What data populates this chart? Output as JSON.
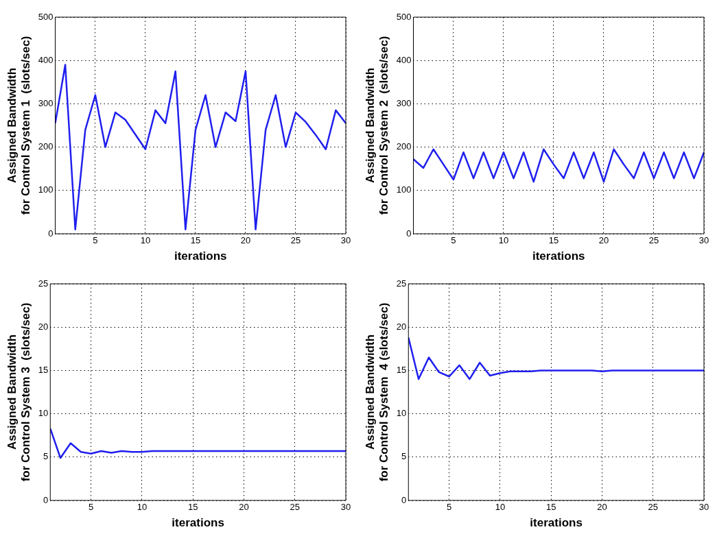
{
  "chart_data": [
    {
      "type": "line",
      "ylabel": "Assigned Bandwidth\nfor Control System 1  (slots/sec)",
      "xlabel": "iterations",
      "x": [
        1,
        2,
        3,
        4,
        5,
        6,
        7,
        8,
        9,
        10,
        11,
        12,
        13,
        14,
        15,
        16,
        17,
        18,
        19,
        20,
        21,
        22,
        23,
        24,
        25,
        26,
        27,
        28,
        29,
        30
      ],
      "series": [
        {
          "color": "#1f1fef",
          "values": [
            255,
            390,
            10,
            240,
            320,
            200,
            280,
            263,
            229,
            195,
            285,
            255,
            375,
            10,
            240,
            320,
            200,
            280,
            260,
            375,
            10,
            240,
            320,
            200,
            280,
            258,
            228,
            195,
            285,
            255
          ]
        }
      ],
      "xlim": [
        1,
        30
      ],
      "xticks": [
        5,
        10,
        15,
        20,
        25,
        30
      ],
      "ylim": [
        0,
        500
      ],
      "yticks": [
        0,
        100,
        200,
        300,
        400,
        500
      ],
      "grid": true
    },
    {
      "type": "line",
      "ylabel": "Assigned Bandwidth\nfor Control System 2  (slots/sec)",
      "xlabel": "iterations",
      "x": [
        1,
        2,
        3,
        4,
        5,
        6,
        7,
        8,
        9,
        10,
        11,
        12,
        13,
        14,
        15,
        16,
        17,
        18,
        19,
        20,
        21,
        22,
        23,
        24,
        25,
        26,
        27,
        28,
        29,
        30
      ],
      "series": [
        {
          "color": "#1f1fef",
          "values": [
            172,
            152,
            195,
            160,
            125,
            188,
            128,
            188,
            128,
            188,
            128,
            188,
            120,
            195,
            160,
            128,
            188,
            128,
            188,
            120,
            195,
            160,
            128,
            188,
            128,
            188,
            128,
            188,
            128,
            188
          ]
        }
      ],
      "xlim": [
        1,
        30
      ],
      "xticks": [
        5,
        10,
        15,
        20,
        25,
        30
      ],
      "ylim": [
        0,
        500
      ],
      "yticks": [
        0,
        100,
        200,
        300,
        400,
        500
      ],
      "grid": true
    },
    {
      "type": "line",
      "ylabel": "Assigned Bandwidth\nfor Control System 3  (slots/sec)",
      "xlabel": "iterations",
      "x": [
        1,
        2,
        3,
        4,
        5,
        6,
        7,
        8,
        9,
        10,
        11,
        12,
        13,
        14,
        15,
        16,
        17,
        18,
        19,
        20,
        21,
        22,
        23,
        24,
        25,
        26,
        27,
        28,
        29,
        30
      ],
      "series": [
        {
          "color": "#1f1fef",
          "values": [
            8.3,
            4.9,
            6.6,
            5.6,
            5.4,
            5.7,
            5.5,
            5.7,
            5.6,
            5.6,
            5.7,
            5.7,
            5.7,
            5.7,
            5.7,
            5.7,
            5.7,
            5.7,
            5.7,
            5.7,
            5.7,
            5.7,
            5.7,
            5.7,
            5.7,
            5.7,
            5.7,
            5.7,
            5.7,
            5.7
          ]
        }
      ],
      "xlim": [
        1,
        30
      ],
      "xticks": [
        5,
        10,
        15,
        20,
        25,
        30
      ],
      "ylim": [
        0,
        25
      ],
      "yticks": [
        0,
        5,
        10,
        15,
        20,
        25
      ],
      "grid": true
    },
    {
      "type": "line",
      "ylabel": "Assigned Bandwidth\nfor Control System  4 (slots/sec)",
      "xlabel": "iterations",
      "x": [
        1,
        2,
        3,
        4,
        5,
        6,
        7,
        8,
        9,
        10,
        11,
        12,
        13,
        14,
        15,
        16,
        17,
        18,
        19,
        20,
        21,
        22,
        23,
        24,
        25,
        26,
        27,
        28,
        29,
        30
      ],
      "series": [
        {
          "color": "#1f1fef",
          "values": [
            18.8,
            14,
            16.5,
            14.8,
            14.3,
            15.6,
            14,
            15.9,
            14.4,
            14.7,
            14.9,
            14.9,
            14.9,
            15,
            15,
            15,
            15,
            15,
            15,
            14.9,
            15,
            15,
            15,
            15,
            15,
            15,
            15,
            15,
            15,
            15
          ]
        }
      ],
      "xlim": [
        1,
        30
      ],
      "xticks": [
        5,
        10,
        15,
        20,
        25,
        30
      ],
      "ylim": [
        0,
        25
      ],
      "yticks": [
        0,
        5,
        10,
        15,
        20,
        25
      ],
      "grid": true
    }
  ]
}
